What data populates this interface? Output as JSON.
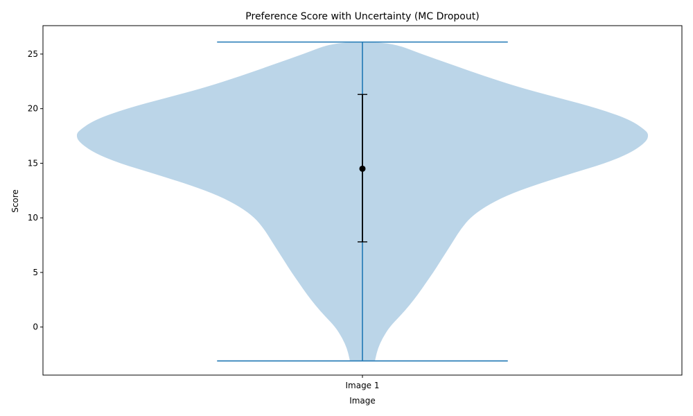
{
  "chart_data": {
    "type": "violin",
    "title": "Preference Score with Uncertainty (MC Dropout)",
    "xlabel": "Image",
    "ylabel": "Score",
    "categories": [
      "Image 1"
    ],
    "ylim": [
      -4.4,
      27.6
    ],
    "yticks": [
      0,
      5,
      10,
      15,
      20,
      25
    ],
    "grid": false,
    "colors": {
      "violin_fill": "#bbd5e8",
      "violin_lines": "#1f77b4",
      "errorbar": "#000000"
    },
    "violins": [
      {
        "category": "Image 1",
        "min": -3.1,
        "max": 26.1,
        "mean": 14.5,
        "error_low": 7.8,
        "error_high": 21.3,
        "density_profile": [
          {
            "y": -3.1,
            "half_width": 0.18
          },
          {
            "y": -2.0,
            "half_width": 0.22
          },
          {
            "y": -1.0,
            "half_width": 0.29
          },
          {
            "y": 0.0,
            "half_width": 0.39
          },
          {
            "y": 1.0,
            "half_width": 0.54
          },
          {
            "y": 2.0,
            "half_width": 0.68
          },
          {
            "y": 3.0,
            "half_width": 0.8
          },
          {
            "y": 4.0,
            "half_width": 0.91
          },
          {
            "y": 5.0,
            "half_width": 1.02
          },
          {
            "y": 6.0,
            "half_width": 1.12
          },
          {
            "y": 7.0,
            "half_width": 1.22
          },
          {
            "y": 8.0,
            "half_width": 1.32
          },
          {
            "y": 9.0,
            "half_width": 1.42
          },
          {
            "y": 10.0,
            "half_width": 1.55
          },
          {
            "y": 11.0,
            "half_width": 1.76
          },
          {
            "y": 12.0,
            "half_width": 2.06
          },
          {
            "y": 13.0,
            "half_width": 2.48
          },
          {
            "y": 14.0,
            "half_width": 2.98
          },
          {
            "y": 15.0,
            "half_width": 3.5
          },
          {
            "y": 16.0,
            "half_width": 3.88
          },
          {
            "y": 17.0,
            "half_width": 4.09
          },
          {
            "y": 17.6,
            "half_width": 4.12
          },
          {
            "y": 18.0,
            "half_width": 4.08
          },
          {
            "y": 19.0,
            "half_width": 3.85
          },
          {
            "y": 20.0,
            "half_width": 3.4
          },
          {
            "y": 21.0,
            "half_width": 2.82
          },
          {
            "y": 22.0,
            "half_width": 2.23
          },
          {
            "y": 23.0,
            "half_width": 1.75
          },
          {
            "y": 24.0,
            "half_width": 1.3
          },
          {
            "y": 25.0,
            "half_width": 0.85
          },
          {
            "y": 26.1,
            "half_width": 0.4
          }
        ]
      }
    ]
  }
}
